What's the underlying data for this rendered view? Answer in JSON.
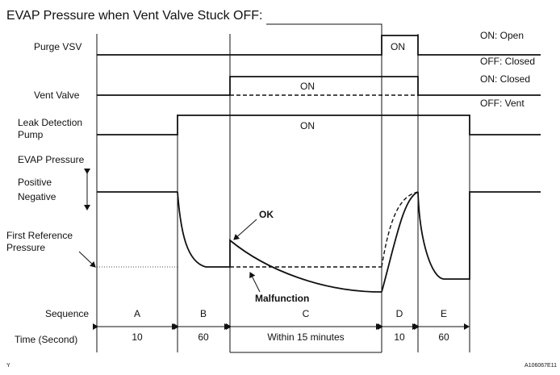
{
  "title": "EVAP Pressure when Vent Valve Stuck OFF:",
  "rows": {
    "purge_vsv": "Purge VSV",
    "vent_valve": "Vent Valve",
    "leak_pump_1": "Leak Detection",
    "leak_pump_2": "Pump",
    "evap_pressure": "EVAP Pressure",
    "positive": "Positive",
    "negative": "Negative",
    "first_ref_1": "First Reference",
    "first_ref_2": "Pressure",
    "sequence": "Sequence",
    "time": "Time (Second)"
  },
  "states": {
    "purge_on": "ON: Open",
    "purge_off": "OFF: Closed",
    "vent_on": "ON: Closed",
    "vent_off": "OFF: Vent"
  },
  "bar_labels": {
    "purge_on": "ON",
    "vent_on": "ON",
    "pump_on": "ON"
  },
  "annotations": {
    "ok": "OK",
    "malfunction": "Malfunction"
  },
  "sequence": [
    "A",
    "B",
    "C",
    "D",
    "E"
  ],
  "times": [
    "10",
    "60",
    "Within 15 minutes",
    "10",
    "60"
  ],
  "footer": {
    "left": "Y",
    "right": "A106067E11"
  }
}
